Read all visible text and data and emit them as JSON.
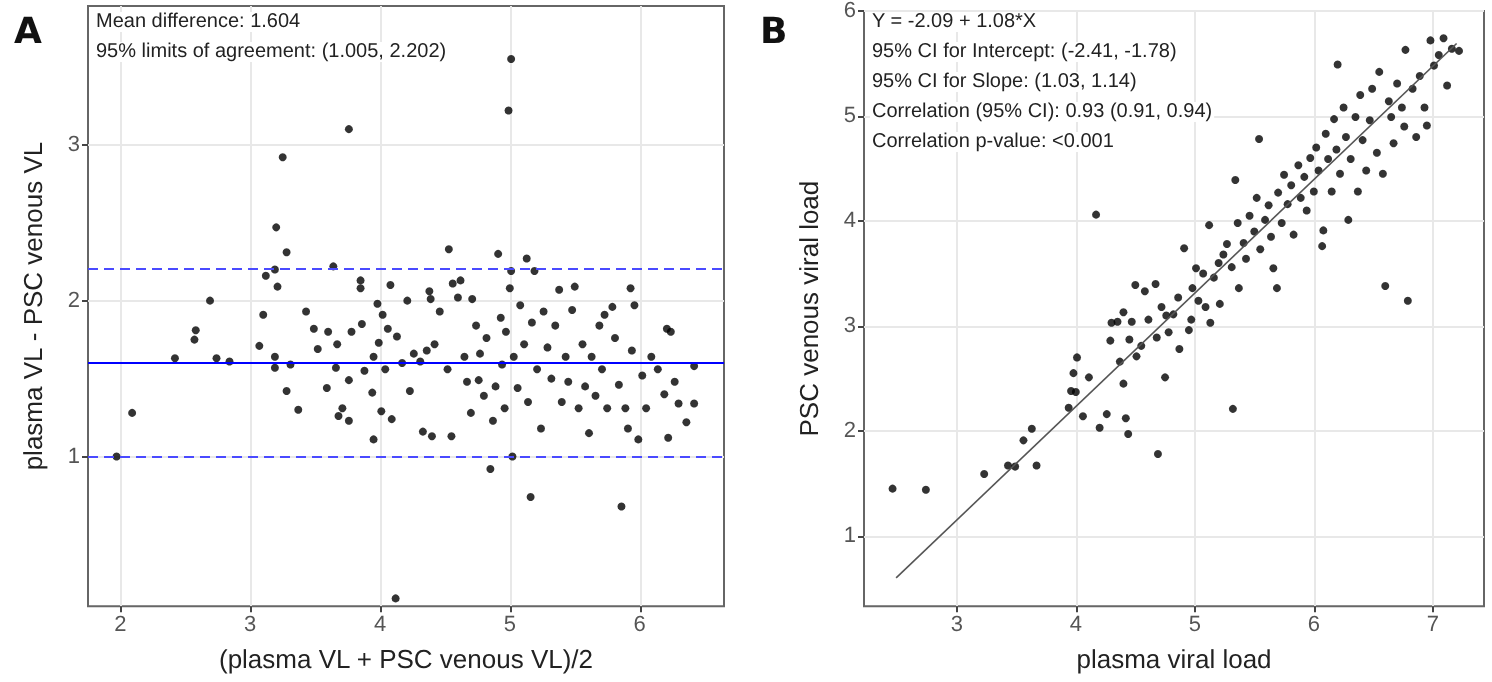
{
  "chart_data": [
    {
      "type": "scatter",
      "title": "A",
      "xlabel": "(plasma VL + PSC venous VL)/2",
      "ylabel": "plasma VL - PSC venous VL",
      "annotations": [
        "Mean difference: 1.604",
        "95% limits of agreement: (1.005, 2.202)"
      ],
      "xlim": [
        1.75,
        6.65
      ],
      "xticks": [
        2,
        3,
        4,
        5,
        6
      ],
      "ylim": [
        0.04,
        3.89
      ],
      "yticks": [
        1,
        2,
        3
      ],
      "grid": true,
      "marker": "circle",
      "ref_lines": [
        {
          "axis": "y",
          "value": 1.604,
          "color": "#0000ff",
          "line_style": "solid"
        },
        {
          "axis": "y",
          "value": 1.005,
          "color": "#4a4aff",
          "line_style": "dashed"
        },
        {
          "axis": "y",
          "value": 2.202,
          "color": "#4a4aff",
          "line_style": "dashed"
        }
      ],
      "series": [
        {
          "color": "#000000",
          "x": [
            1.97,
            2.09,
            2.42,
            2.57,
            2.58,
            2.69,
            2.74,
            2.84,
            3.07,
            3.1,
            3.12,
            3.19,
            3.2,
            3.21,
            3.19,
            3.19,
            3.25,
            3.28,
            3.28,
            3.31,
            3.37,
            3.43,
            3.49,
            3.52,
            3.59,
            3.6,
            3.64,
            3.66,
            3.67,
            3.68,
            3.71,
            3.76,
            3.76,
            3.76,
            3.78,
            3.85,
            3.85,
            3.86,
            3.88,
            3.94,
            3.95,
            3.95,
            3.98,
            3.99,
            4.01,
            4.02,
            4.04,
            4.06,
            4.08,
            4.09,
            4.12,
            4.13,
            4.17,
            4.21,
            4.23,
            4.26,
            4.31,
            4.33,
            4.36,
            4.39,
            4.38,
            4.4,
            4.42,
            4.46,
            4.52,
            4.53,
            4.55,
            4.56,
            4.6,
            4.62,
            4.65,
            4.67,
            4.7,
            4.71,
            4.74,
            4.76,
            4.77,
            4.8,
            4.82,
            4.85,
            4.87,
            4.89,
            4.91,
            4.93,
            4.94,
            4.96,
            4.97,
            4.99,
            5.0,
            5.01,
            5.01,
            5.02,
            5.03,
            5.06,
            5.08,
            5.11,
            5.13,
            5.14,
            5.16,
            5.17,
            5.19,
            5.21,
            5.24,
            5.26,
            5.29,
            5.32,
            5.35,
            5.38,
            5.4,
            5.43,
            5.45,
            5.48,
            5.5,
            5.53,
            5.56,
            5.58,
            5.61,
            5.63,
            5.66,
            5.69,
            5.71,
            5.73,
            5.75,
            5.79,
            5.81,
            5.84,
            5.86,
            5.89,
            5.91,
            5.93,
            5.94,
            5.96,
            5.99,
            6.02,
            6.05,
            6.09,
            6.14,
            6.19,
            6.21,
            6.22,
            6.24,
            6.27,
            6.3,
            6.36,
            6.42,
            6.42
          ],
          "values": [
            1.0,
            1.28,
            1.63,
            1.75,
            1.81,
            2.0,
            1.63,
            1.61,
            1.71,
            1.91,
            2.16,
            2.2,
            2.47,
            2.09,
            1.57,
            1.64,
            2.92,
            2.31,
            1.42,
            1.59,
            1.3,
            1.93,
            1.82,
            1.69,
            1.44,
            1.8,
            2.22,
            1.57,
            1.72,
            1.26,
            1.31,
            1.49,
            1.23,
            3.1,
            1.8,
            2.13,
            2.08,
            1.85,
            1.55,
            1.41,
            1.11,
            1.64,
            1.98,
            1.73,
            1.29,
            1.91,
            1.56,
            1.82,
            2.1,
            1.24,
            0.09,
            1.77,
            1.6,
            2.0,
            1.42,
            1.66,
            1.61,
            1.16,
            1.68,
            2.01,
            2.06,
            1.13,
            1.72,
            1.93,
            1.56,
            2.33,
            1.13,
            2.11,
            2.02,
            2.13,
            1.64,
            1.48,
            1.28,
            2.01,
            1.84,
            1.49,
            1.66,
            1.39,
            1.76,
            0.92,
            1.23,
            1.45,
            2.3,
            1.89,
            1.59,
            1.31,
            1.8,
            3.22,
            2.08,
            2.19,
            3.55,
            1.0,
            1.64,
            1.44,
            1.97,
            1.72,
            2.27,
            1.35,
            0.74,
            1.86,
            2.19,
            1.56,
            1.18,
            1.93,
            1.7,
            1.5,
            1.84,
            2.07,
            1.35,
            1.64,
            1.48,
            1.94,
            2.09,
            1.31,
            1.72,
            1.45,
            1.15,
            1.64,
            1.39,
            1.84,
            1.56,
            1.91,
            1.31,
            1.96,
            1.76,
            1.46,
            0.68,
            1.31,
            1.18,
            2.08,
            1.68,
            1.97,
            1.11,
            1.52,
            1.31,
            1.64,
            1.56,
            1.4,
            1.82,
            1.12,
            1.8,
            1.48,
            1.34,
            1.22,
            1.34,
            1.58
          ]
        }
      ]
    },
    {
      "type": "scatter",
      "title": "B",
      "xlabel": "plasma viral load",
      "ylabel": "PSC venous viral load",
      "annotations": [
        "Y = -2.09 + 1.08*X",
        "95% CI for Intercept: (-2.41, -1.78)",
        "95% CI for Slope: (1.03, 1.14)",
        "Correlation (95% CI): 0.93 (0.91, 0.94)",
        "Correlation p-value: <0.001"
      ],
      "xlim": [
        2.22,
        7.43
      ],
      "xticks": [
        3,
        4,
        5,
        6,
        7
      ],
      "ylim": [
        0.33,
        6.0
      ],
      "yticks": [
        1,
        2,
        3,
        4,
        5,
        6
      ],
      "grid": true,
      "marker": "circle",
      "series": [
        {
          "color": "#000000",
          "x": [
            2.46,
            2.74,
            3.23,
            3.43,
            3.49,
            3.56,
            3.63,
            3.67,
            3.94,
            3.96,
            3.98,
            4.0,
            4.01,
            4.06,
            4.11,
            4.17,
            4.2,
            4.26,
            4.29,
            4.3,
            4.35,
            4.37,
            4.4,
            4.4,
            4.42,
            4.44,
            4.45,
            4.47,
            4.5,
            4.51,
            4.55,
            4.58,
            4.61,
            4.67,
            4.68,
            4.69,
            4.72,
            4.75,
            4.76,
            4.78,
            4.82,
            4.86,
            4.87,
            4.91,
            4.95,
            4.97,
            4.98,
            5.01,
            5.03,
            5.07,
            5.09,
            5.12,
            5.13,
            5.16,
            5.2,
            5.21,
            5.24,
            5.27,
            5.31,
            5.32,
            5.34,
            5.36,
            5.37,
            5.41,
            5.43,
            5.46,
            5.5,
            5.52,
            5.54,
            5.55,
            5.59,
            5.62,
            5.64,
            5.66,
            5.69,
            5.7,
            5.73,
            5.75,
            5.78,
            5.81,
            5.83,
            5.87,
            5.89,
            5.92,
            5.94,
            5.97,
            6.0,
            6.02,
            6.04,
            6.07,
            6.08,
            6.1,
            6.12,
            6.15,
            6.17,
            6.19,
            6.2,
            6.22,
            6.25,
            6.27,
            6.29,
            6.31,
            6.35,
            6.37,
            6.39,
            6.41,
            6.44,
            6.47,
            6.49,
            6.53,
            6.55,
            6.58,
            6.6,
            6.63,
            6.65,
            6.67,
            6.7,
            6.74,
            6.76,
            6.77,
            6.79,
            6.83,
            6.86,
            6.89,
            6.93,
            6.95,
            6.98,
            7.01,
            7.05,
            7.09,
            7.12,
            7.16,
            7.22
          ],
          "values": [
            1.45,
            1.44,
            1.59,
            1.67,
            1.66,
            1.91,
            2.02,
            1.67,
            2.22,
            2.38,
            2.55,
            2.37,
            2.7,
            2.14,
            2.51,
            4.06,
            2.03,
            2.16,
            2.86,
            3.03,
            3.04,
            2.66,
            3.13,
            2.45,
            2.12,
            1.97,
            2.87,
            3.04,
            3.39,
            2.71,
            2.81,
            3.33,
            3.06,
            3.4,
            2.89,
            1.78,
            3.18,
            2.51,
            3.1,
            2.94,
            3.11,
            3.27,
            2.78,
            3.74,
            2.96,
            3.06,
            3.36,
            3.55,
            3.24,
            3.5,
            3.18,
            3.96,
            3.03,
            3.46,
            3.6,
            3.21,
            3.68,
            3.78,
            3.56,
            2.21,
            4.39,
            3.98,
            3.36,
            3.79,
            3.64,
            4.05,
            3.9,
            4.22,
            4.78,
            3.73,
            4.01,
            4.15,
            3.85,
            3.55,
            3.36,
            4.27,
            3.98,
            4.44,
            4.16,
            4.34,
            3.87,
            4.53,
            4.22,
            4.42,
            4.1,
            4.6,
            4.28,
            4.7,
            4.48,
            3.76,
            3.91,
            4.83,
            4.59,
            4.28,
            4.97,
            4.68,
            5.49,
            4.45,
            5.08,
            4.8,
            4.01,
            4.59,
            4.99,
            4.28,
            5.2,
            4.77,
            4.48,
            4.96,
            5.26,
            4.65,
            5.42,
            4.45,
            3.38,
            5.14,
            4.99,
            4.74,
            5.31,
            5.08,
            4.9,
            5.63,
            3.24,
            5.26,
            4.8,
            5.38,
            5.08,
            4.91,
            5.72,
            5.48,
            5.58,
            5.74,
            5.29,
            5.64,
            5.62
          ]
        },
        {
          "type": "line",
          "marker": "none",
          "color": "#555555",
          "x": [
            2.49,
            7.2
          ],
          "values": [
            0.6,
            5.69
          ]
        }
      ]
    }
  ]
}
